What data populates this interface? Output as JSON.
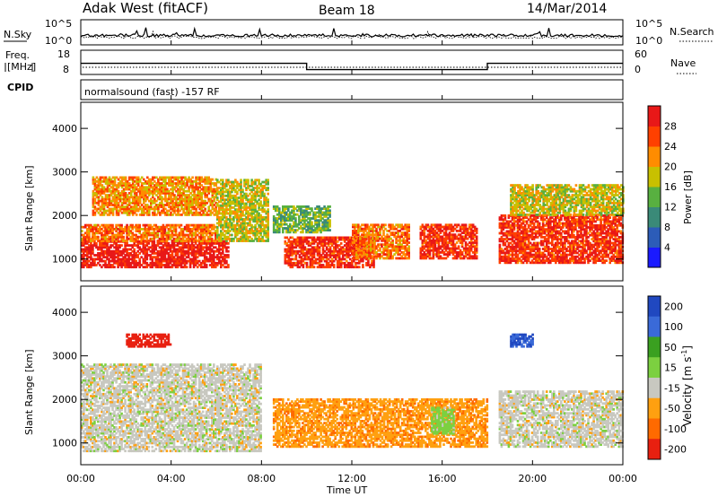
{
  "header": {
    "left": "Adak West (fitACF)",
    "center": "Beam 18",
    "right": "14/Mar/2014"
  },
  "noise_panel": {
    "left_label": "N.Sky",
    "right_label": "N.Search",
    "left_ticks": [
      "10^5",
      "10^0"
    ],
    "right_ticks": [
      "10^5",
      "10^0"
    ]
  },
  "freq_panel": {
    "left_label_1": "Freq.",
    "left_label_2": "[MHz]",
    "right_label": "Nave",
    "left_ticks": [
      "18",
      "8"
    ],
    "right_ticks": [
      "60",
      "0"
    ]
  },
  "cpid_panel": {
    "label": "CPID",
    "text": "normalsound (fast) -157 RF"
  },
  "axes": {
    "ylabel": "Slant Range [km]",
    "xlabel": "Time UT",
    "x_ticks": [
      "00:00",
      "04:00",
      "08:00",
      "12:00",
      "16:00",
      "20:00",
      "00:00"
    ],
    "y_ticks": [
      "1000",
      "2000",
      "3000",
      "4000"
    ]
  },
  "power_colorbar": {
    "label": "Power [dB]",
    "ticks": [
      "4",
      "8",
      "12",
      "16",
      "20",
      "24",
      "28"
    ],
    "colors": [
      "#1a1aff",
      "#2c5cb8",
      "#3a8a78",
      "#58b040",
      "#c8c000",
      "#ff8c00",
      "#ff4000",
      "#e81818"
    ]
  },
  "velocity_colorbar": {
    "label": "Velocity [m s",
    "label_sup": "-1",
    "label_end": "]",
    "ticks": [
      "200",
      "100",
      "50",
      "15",
      "-15",
      "-50",
      "-100",
      "-200"
    ],
    "colors": [
      "#2048c0",
      "#3a6ad8",
      "#3aa020",
      "#7cd040",
      "#c8c8c0",
      "#ffa010",
      "#ff6a00",
      "#e82010"
    ]
  },
  "chart_data": {
    "type": "heatmap",
    "title": "Adak West (fitACF)  Beam 18  14/Mar/2014",
    "xlabel": "Time UT",
    "ylabel": "Slant Range [km]",
    "xlim_hours": [
      0,
      24
    ],
    "ylim_km": [
      500,
      4600
    ],
    "freq_steps": [
      {
        "from_h": 0,
        "to_h": 10,
        "freq_mhz": 12.6
      },
      {
        "from_h": 10,
        "to_h": 18,
        "freq_mhz": 10.0
      },
      {
        "from_h": 18,
        "to_h": 24,
        "freq_mhz": 12.6
      }
    ],
    "power_regions": [
      {
        "t0": 0.0,
        "t1": 6.5,
        "r0": 800,
        "r1": 1400,
        "power_db": 30
      },
      {
        "t0": 0.0,
        "t1": 6.0,
        "r0": 1400,
        "r1": 1800,
        "power_db": 24
      },
      {
        "t0": 0.5,
        "t1": 6.0,
        "r0": 2000,
        "r1": 2900,
        "power_db": 22
      },
      {
        "t0": 6.0,
        "t1": 8.3,
        "r0": 1400,
        "r1": 2800,
        "power_db": 18
      },
      {
        "t0": 8.5,
        "t1": 11.0,
        "r0": 1600,
        "r1": 2200,
        "power_db": 14
      },
      {
        "t0": 9.0,
        "t1": 13.0,
        "r0": 800,
        "r1": 1500,
        "power_db": 28
      },
      {
        "t0": 12.0,
        "t1": 14.5,
        "r0": 1000,
        "r1": 1800,
        "power_db": 24
      },
      {
        "t0": 15.0,
        "t1": 17.5,
        "r0": 1000,
        "r1": 1800,
        "power_db": 28
      },
      {
        "t0": 18.5,
        "t1": 24.0,
        "r0": 900,
        "r1": 2000,
        "power_db": 28
      },
      {
        "t0": 19.0,
        "t1": 24.0,
        "r0": 2000,
        "r1": 2700,
        "power_db": 18
      }
    ],
    "velocity_regions": [
      {
        "t0": 0.0,
        "t1": 8.0,
        "r0": 800,
        "r1": 2800,
        "velocity_ms": 0
      },
      {
        "t0": 8.5,
        "t1": 18.0,
        "r0": 900,
        "r1": 2000,
        "velocity_ms": -40
      },
      {
        "t0": 15.5,
        "t1": 16.5,
        "r0": 1200,
        "r1": 1800,
        "velocity_ms": 30
      },
      {
        "t0": 18.5,
        "t1": 24.0,
        "r0": 900,
        "r1": 2200,
        "velocity_ms": 0
      },
      {
        "t0": 2.0,
        "t1": 4.0,
        "r0": 3200,
        "r1": 3500,
        "velocity_ms": -200
      },
      {
        "t0": 19.0,
        "t1": 20.0,
        "r0": 3200,
        "r1": 3500,
        "velocity_ms": 200
      }
    ]
  }
}
